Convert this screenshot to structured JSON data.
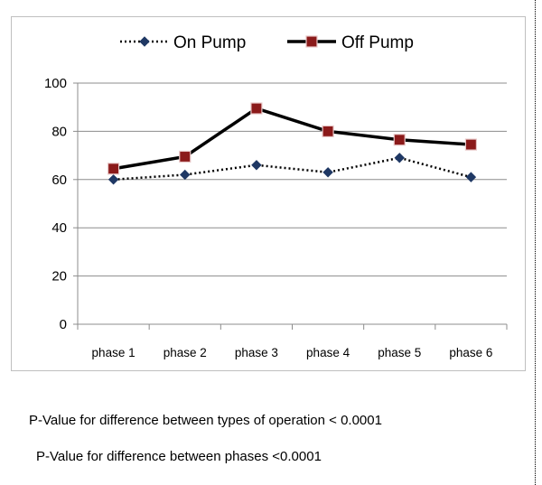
{
  "chart_data": {
    "type": "line",
    "categories": [
      "phase 1",
      "phase 2",
      "phase 3",
      "phase 4",
      "phase 5",
      "phase 6"
    ],
    "series": [
      {
        "name": "On Pump",
        "values": [
          60,
          62,
          66,
          63,
          69,
          61
        ],
        "color": "#1f3864",
        "line_style": "dotted",
        "marker": "diamond"
      },
      {
        "name": "Off Pump",
        "values": [
          64.5,
          69.5,
          89.5,
          80,
          76.5,
          74.5
        ],
        "color": "#000000",
        "marker_fill": "#8b1a1a",
        "line_style": "solid",
        "marker": "square"
      }
    ],
    "title": "",
    "xlabel": "",
    "ylabel": "",
    "ylim": [
      0,
      100
    ],
    "yticks": [
      0,
      20,
      40,
      60,
      80,
      100
    ],
    "grid": "horizontal",
    "legend": "top"
  },
  "notes": [
    "P-Value for difference between types of operation < 0.0001",
    "P-Value for difference between phases <0.0001"
  ]
}
